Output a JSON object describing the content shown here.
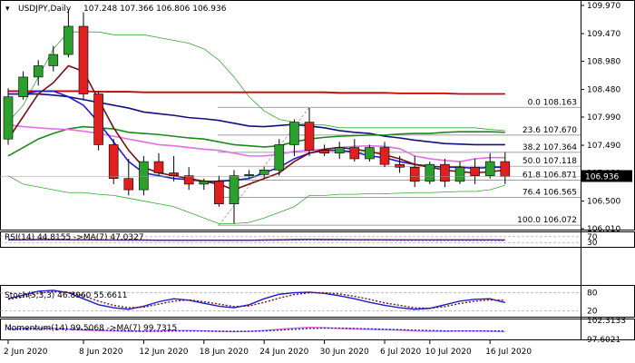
{
  "header": {
    "symbol": "USDJPY,Daily",
    "ohlc": "107.248 107.366 106.806 106.936"
  },
  "colors": {
    "bull": "#2ca02c",
    "bear": "#e02020",
    "price_label_bg": "#000000",
    "ma_fast": "#1c1cd6",
    "ma_mid": "#7a1010",
    "ma_slow": "#101080",
    "ma_green": "#1a8a1a",
    "ma_magenta": "#e070e0",
    "ma_red": "#cc0000",
    "bollinger": "#33a833",
    "fib": "#808080"
  },
  "chart_data": [
    {
      "type": "candlestick",
      "x_tick_labels": [
        "2 Jun 2020",
        "8 Jun 2020",
        "12 Jun 2020",
        "18 Jun 2020",
        "24 Jun 2020",
        "30 Jun 2020",
        "6 Jul 2020",
        "10 Jul 2020",
        "16 Jul 2020"
      ],
      "y_tick_labels": [
        "109.970",
        "109.470",
        "108.980",
        "108.480",
        "107.990",
        "107.490",
        "107.000",
        "106.500",
        "106.010"
      ],
      "ylim": [
        106.01,
        109.97
      ],
      "last_price": "106.936",
      "candles": [
        {
          "o": 107.6,
          "h": 108.5,
          "l": 107.5,
          "c": 108.35
        },
        {
          "o": 108.35,
          "h": 108.8,
          "l": 108.3,
          "c": 108.7
        },
        {
          "o": 108.7,
          "h": 109.0,
          "l": 108.55,
          "c": 108.9
        },
        {
          "o": 108.9,
          "h": 109.25,
          "l": 108.8,
          "c": 109.1
        },
        {
          "o": 109.1,
          "h": 109.9,
          "l": 109.05,
          "c": 109.6
        },
        {
          "o": 109.6,
          "h": 109.85,
          "l": 108.3,
          "c": 108.4
        },
        {
          "o": 108.4,
          "h": 108.45,
          "l": 107.4,
          "c": 107.5
        },
        {
          "o": 107.5,
          "h": 107.6,
          "l": 106.8,
          "c": 106.9
        },
        {
          "o": 106.9,
          "h": 107.25,
          "l": 106.6,
          "c": 106.7
        },
        {
          "o": 106.7,
          "h": 107.3,
          "l": 106.6,
          "c": 107.2
        },
        {
          "o": 107.2,
          "h": 107.35,
          "l": 106.95,
          "c": 107.0
        },
        {
          "o": 107.0,
          "h": 107.3,
          "l": 106.85,
          "c": 106.95
        },
        {
          "o": 106.95,
          "h": 107.1,
          "l": 106.7,
          "c": 106.8
        },
        {
          "o": 106.8,
          "h": 106.9,
          "l": 106.7,
          "c": 106.85
        },
        {
          "o": 106.85,
          "h": 106.95,
          "l": 106.4,
          "c": 106.45
        },
        {
          "o": 106.45,
          "h": 107.05,
          "l": 106.1,
          "c": 106.95
        },
        {
          "o": 106.95,
          "h": 107.05,
          "l": 106.9,
          "c": 106.97
        },
        {
          "o": 106.97,
          "h": 107.1,
          "l": 106.9,
          "c": 107.05
        },
        {
          "o": 107.05,
          "h": 107.6,
          "l": 106.95,
          "c": 107.5
        },
        {
          "o": 107.5,
          "h": 107.95,
          "l": 107.3,
          "c": 107.9
        },
        {
          "o": 107.9,
          "h": 108.15,
          "l": 107.3,
          "c": 107.4
        },
        {
          "o": 107.4,
          "h": 107.5,
          "l": 107.3,
          "c": 107.35
        },
        {
          "o": 107.35,
          "h": 107.55,
          "l": 107.25,
          "c": 107.45
        },
        {
          "o": 107.45,
          "h": 107.6,
          "l": 107.2,
          "c": 107.25
        },
        {
          "o": 107.25,
          "h": 107.5,
          "l": 107.2,
          "c": 107.45
        },
        {
          "o": 107.45,
          "h": 107.55,
          "l": 107.1,
          "c": 107.15
        },
        {
          "o": 107.15,
          "h": 107.3,
          "l": 107.0,
          "c": 107.1
        },
        {
          "o": 107.1,
          "h": 107.3,
          "l": 106.75,
          "c": 106.85
        },
        {
          "o": 106.85,
          "h": 107.2,
          "l": 106.8,
          "c": 107.15
        },
        {
          "o": 107.15,
          "h": 107.25,
          "l": 106.75,
          "c": 106.85
        },
        {
          "o": 106.85,
          "h": 107.2,
          "l": 106.8,
          "c": 107.1
        },
        {
          "o": 107.1,
          "h": 107.25,
          "l": 106.8,
          "c": 106.95
        },
        {
          "o": 106.95,
          "h": 107.35,
          "l": 106.9,
          "c": 107.2
        },
        {
          "o": 107.2,
          "h": 107.37,
          "l": 106.8,
          "c": 106.94
        }
      ],
      "moving_averages": [
        {
          "color_key": "ma_red",
          "values": [
            108.45,
            108.45,
            108.45,
            108.45,
            108.45,
            108.45,
            108.44,
            108.44,
            108.44,
            108.43,
            108.43,
            108.43,
            108.43,
            108.43,
            108.43,
            108.43,
            108.43,
            108.43,
            108.43,
            108.43,
            108.43,
            108.43,
            108.42,
            108.42,
            108.42,
            108.42,
            108.41,
            108.41,
            108.41,
            108.41,
            108.4,
            108.4,
            108.4,
            108.4
          ]
        },
        {
          "color_key": "ma_slow",
          "values": [
            108.4,
            108.4,
            108.4,
            108.38,
            108.35,
            108.3,
            108.25,
            108.2,
            108.15,
            108.08,
            108.05,
            108.02,
            107.98,
            107.96,
            107.93,
            107.88,
            107.83,
            107.82,
            107.84,
            107.86,
            107.83,
            107.8,
            107.75,
            107.72,
            107.7,
            107.65,
            107.62,
            107.58,
            107.55,
            107.52,
            107.51,
            107.5,
            107.5,
            107.5
          ]
        },
        {
          "color_key": "ma_green",
          "values": [
            107.3,
            107.45,
            107.6,
            107.7,
            107.78,
            107.82,
            107.8,
            107.78,
            107.72,
            107.7,
            107.68,
            107.65,
            107.62,
            107.6,
            107.55,
            107.5,
            107.48,
            107.46,
            107.48,
            107.55,
            107.6,
            107.63,
            107.65,
            107.66,
            107.67,
            107.67,
            107.69,
            107.7,
            107.7,
            107.72,
            107.73,
            107.73,
            107.73,
            107.72
          ]
        },
        {
          "color_key": "ma_magenta",
          "values": [
            107.85,
            107.82,
            107.8,
            107.78,
            107.77,
            107.74,
            107.7,
            107.65,
            107.6,
            107.55,
            107.5,
            107.48,
            107.45,
            107.42,
            107.4,
            107.35,
            107.3,
            107.3,
            107.33,
            107.38,
            107.4,
            107.42,
            107.45,
            107.47,
            107.48,
            107.47,
            107.43,
            107.3,
            107.25,
            107.22,
            107.2,
            107.25,
            107.27,
            107.27
          ]
        },
        {
          "color_key": "ma_fast",
          "values": [
            108.4,
            108.4,
            108.45,
            108.45,
            108.35,
            108.2,
            107.9,
            107.55,
            107.2,
            107.0,
            106.95,
            106.9,
            106.88,
            106.85,
            106.85,
            106.87,
            106.9,
            107.0,
            107.1,
            107.25,
            107.35,
            107.4,
            107.4,
            107.37,
            107.3,
            107.27,
            107.2,
            107.15,
            107.12,
            107.1,
            107.1,
            107.08,
            107.1,
            107.1
          ]
        },
        {
          "color_key": "ma_mid",
          "values": [
            107.6,
            108.0,
            108.4,
            108.6,
            108.9,
            108.8,
            108.3,
            107.8,
            107.4,
            107.1,
            107.0,
            106.95,
            106.9,
            106.85,
            106.8,
            106.7,
            106.8,
            106.9,
            107.0,
            107.2,
            107.35,
            107.42,
            107.45,
            107.42,
            107.38,
            107.32,
            107.25,
            107.15,
            107.1,
            107.05,
            107.02,
            107.0,
            107.02,
            107.05
          ]
        }
      ],
      "bollinger": {
        "upper": [
          107.9,
          108.2,
          108.7,
          109.2,
          109.5,
          109.5,
          109.5,
          109.45,
          109.45,
          109.45,
          109.4,
          109.35,
          109.3,
          109.2,
          109.0,
          108.7,
          108.35,
          108.1,
          107.95,
          107.9,
          107.85,
          107.85,
          107.8,
          107.8,
          107.8,
          107.8,
          107.8,
          107.8,
          107.8,
          107.8,
          107.8,
          107.8,
          107.77,
          107.75
        ],
        "lower": [
          106.95,
          106.8,
          106.75,
          106.7,
          106.65,
          106.65,
          106.62,
          106.6,
          106.55,
          106.5,
          106.45,
          106.4,
          106.3,
          106.2,
          106.1,
          106.1,
          106.12,
          106.2,
          106.3,
          106.4,
          106.6,
          106.6,
          106.62,
          106.62,
          106.63,
          106.63,
          106.64,
          106.65,
          106.65,
          106.66,
          106.67,
          106.67,
          106.7,
          106.78
        ]
      },
      "fibonacci": [
        {
          "label": "0.0 108.163",
          "value": 108.163
        },
        {
          "label": "23.6 107.670",
          "value": 107.67
        },
        {
          "label": "38.2 107.364",
          "value": 107.364
        },
        {
          "label": "50.0 107.118",
          "value": 107.118
        },
        {
          "label": "61.8 106.871",
          "value": 106.871
        },
        {
          "label": "76.4 106.565",
          "value": 106.565
        },
        {
          "label": "100.0 106.072",
          "value": 106.072
        }
      ]
    },
    {
      "type": "line",
      "name_label": "RSI(14) 44.8155 ->MA(7) 47.0327",
      "y_tick_labels": [
        "70",
        "30"
      ],
      "levels": [
        70,
        30
      ],
      "ylim": [
        0,
        100
      ],
      "series": [
        {
          "color_key": "ma_mid",
          "values": [
            48,
            49,
            50,
            50,
            49,
            49,
            48,
            47,
            47,
            47,
            46,
            46,
            46,
            46,
            46,
            46,
            46,
            47,
            48,
            50,
            51,
            50,
            50,
            49,
            49,
            48,
            48,
            48,
            48,
            48,
            48,
            48,
            48,
            47
          ]
        },
        {
          "color_key": "ma_fast",
          "values": [
            47,
            48,
            49,
            49,
            48,
            47,
            47,
            47,
            46,
            46,
            46,
            46,
            46,
            46,
            46,
            46,
            46,
            46,
            47,
            48,
            49,
            49,
            48,
            48,
            47,
            47,
            46,
            46,
            46,
            46,
            46,
            46,
            46,
            45
          ]
        }
      ]
    },
    {
      "type": "line",
      "name_label": "Stoch(5,3,3) 46.8960 55.6611",
      "y_tick_labels": [
        "80",
        "20"
      ],
      "levels": [
        80,
        20
      ],
      "ylim": [
        0,
        100
      ],
      "series": [
        {
          "color_key": "ma_fast",
          "values": [
            60,
            72,
            85,
            88,
            80,
            60,
            40,
            30,
            25,
            35,
            50,
            60,
            55,
            45,
            35,
            30,
            40,
            60,
            75,
            80,
            82,
            78,
            70,
            60,
            48,
            38,
            30,
            25,
            28,
            40,
            52,
            58,
            60,
            47
          ]
        },
        {
          "color_key": "ma_mid",
          "values": [
            58,
            66,
            78,
            84,
            82,
            70,
            52,
            38,
            30,
            32,
            42,
            52,
            56,
            50,
            42,
            34,
            36,
            48,
            62,
            74,
            80,
            80,
            76,
            68,
            58,
            46,
            38,
            30,
            28,
            34,
            44,
            52,
            56,
            55
          ]
        }
      ]
    },
    {
      "type": "line",
      "name_label": "Momentum(14) 99.5068 ->MA(7) 99.7315",
      "y_tick_labels": [
        "102.3133",
        "97.6021"
      ],
      "ylim": [
        97.6021,
        102.3133
      ],
      "series": [
        {
          "color_key": "ma_magenta",
          "values": [
            100.2,
            100.3,
            100.4,
            100.3,
            100.1,
            99.9,
            99.8,
            99.7,
            99.6,
            99.6,
            99.7,
            99.8,
            99.8,
            99.7,
            99.6,
            99.5,
            99.6,
            99.8,
            100.1,
            100.4,
            100.6,
            100.5,
            100.3,
            100.2,
            100.1,
            100.0,
            99.9,
            99.7,
            99.6,
            99.6,
            99.7,
            99.7,
            99.6,
            99.5
          ]
        },
        {
          "color_key": "ma_fast",
          "values": [
            100.1,
            100.2,
            100.3,
            100.3,
            100.2,
            100.1,
            99.9,
            99.8,
            99.7,
            99.6,
            99.6,
            99.7,
            99.7,
            99.7,
            99.6,
            99.6,
            99.6,
            99.7,
            99.9,
            100.1,
            100.3,
            100.4,
            100.4,
            100.3,
            100.2,
            100.1,
            100.0,
            99.9,
            99.8,
            99.7,
            99.7,
            99.7,
            99.7,
            99.7
          ]
        }
      ]
    }
  ]
}
